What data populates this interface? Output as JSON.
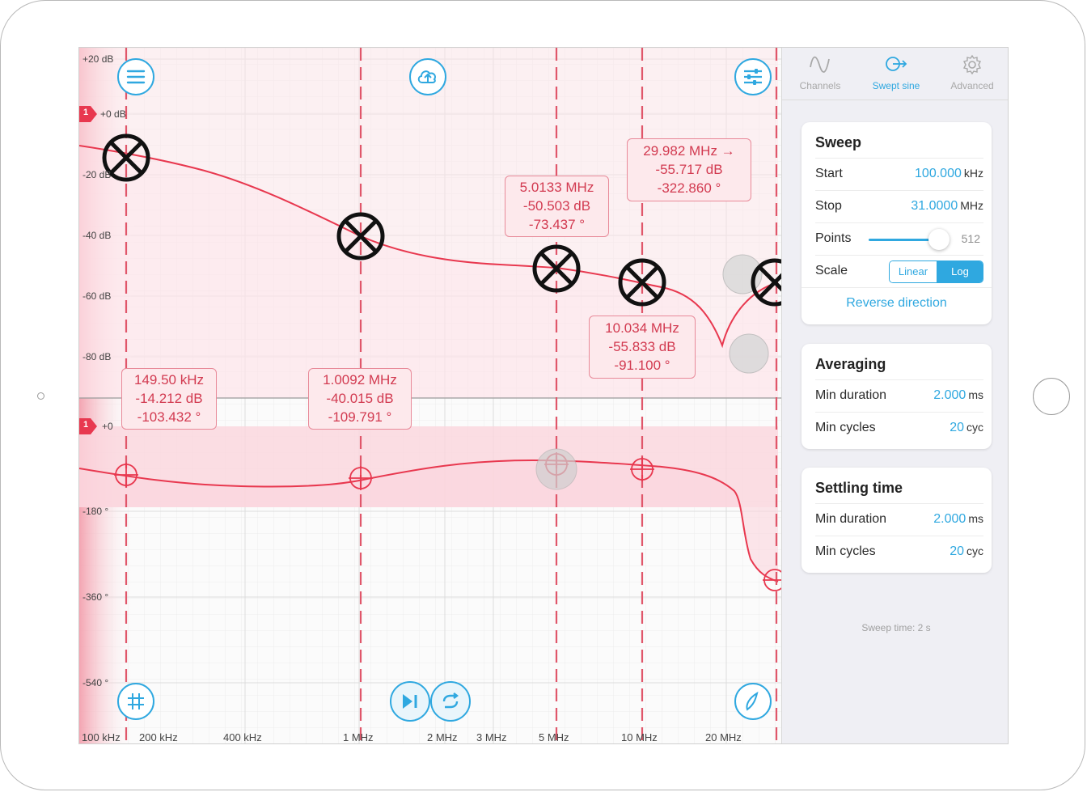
{
  "plot": {
    "y_labels_mag": [
      "+20 dB",
      "+0 dB",
      "-20 dB",
      "-40 dB",
      "-60 dB",
      "-80 dB"
    ],
    "y_labels_phase": [
      "+0",
      "-180 °",
      "-360 °",
      "-540 °"
    ],
    "channel_marker": "1",
    "x_labels": [
      "100 kHz",
      "200 kHz",
      "400 kHz",
      "1 MHz",
      "2 MHz",
      "3 MHz",
      "5 MHz",
      "10 MHz",
      "20 MHz"
    ],
    "markers": [
      {
        "freq": "149.50 kHz",
        "mag": "-14.212 dB",
        "phase": "-103.432 °"
      },
      {
        "freq": "1.0092 MHz",
        "mag": "-40.015 dB",
        "phase": "-109.791 °"
      },
      {
        "freq": "5.0133 MHz",
        "mag": "-50.503 dB",
        "phase": "-73.437 °"
      },
      {
        "freq": "10.034 MHz",
        "mag": "-55.833 dB",
        "phase": "-91.100 °"
      },
      {
        "freq": "29.982 MHz →",
        "mag": "-55.717 dB",
        "phase": "-322.860 °"
      }
    ],
    "colors": {
      "trace": "#e8384f",
      "accent": "#2fa8e0",
      "marker_bg": "#fde9ec"
    }
  },
  "toolbar": {
    "icons": [
      "menu-icon",
      "cloud-upload-icon",
      "sliders-icon",
      "grid-icon",
      "play-step-icon",
      "repeat-icon",
      "pick-icon"
    ]
  },
  "panel": {
    "tabs": [
      {
        "label": "Channels",
        "icon": "sine-wave-icon"
      },
      {
        "label": "Swept sine",
        "icon": "swept-sine-icon"
      },
      {
        "label": "Advanced",
        "icon": "gear-icon"
      }
    ],
    "sweep": {
      "title": "Sweep",
      "start_label": "Start",
      "start_value": "100.000",
      "start_unit": "kHz",
      "stop_label": "Stop",
      "stop_value": "31.0000",
      "stop_unit": "MHz",
      "points_label": "Points",
      "points_value": "512",
      "scale_label": "Scale",
      "scale_options": [
        "Linear",
        "Log"
      ],
      "scale_selected": "Log",
      "reverse_label": "Reverse direction"
    },
    "averaging": {
      "title": "Averaging",
      "min_duration_label": "Min duration",
      "min_duration_value": "2.000",
      "min_duration_unit": "ms",
      "min_cycles_label": "Min cycles",
      "min_cycles_value": "20",
      "min_cycles_unit": "cyc"
    },
    "settling": {
      "title": "Settling time",
      "min_duration_label": "Min duration",
      "min_duration_value": "2.000",
      "min_duration_unit": "ms",
      "min_cycles_label": "Min cycles",
      "min_cycles_value": "20",
      "min_cycles_unit": "cyc"
    },
    "sweep_time": "Sweep time: 2 s"
  }
}
